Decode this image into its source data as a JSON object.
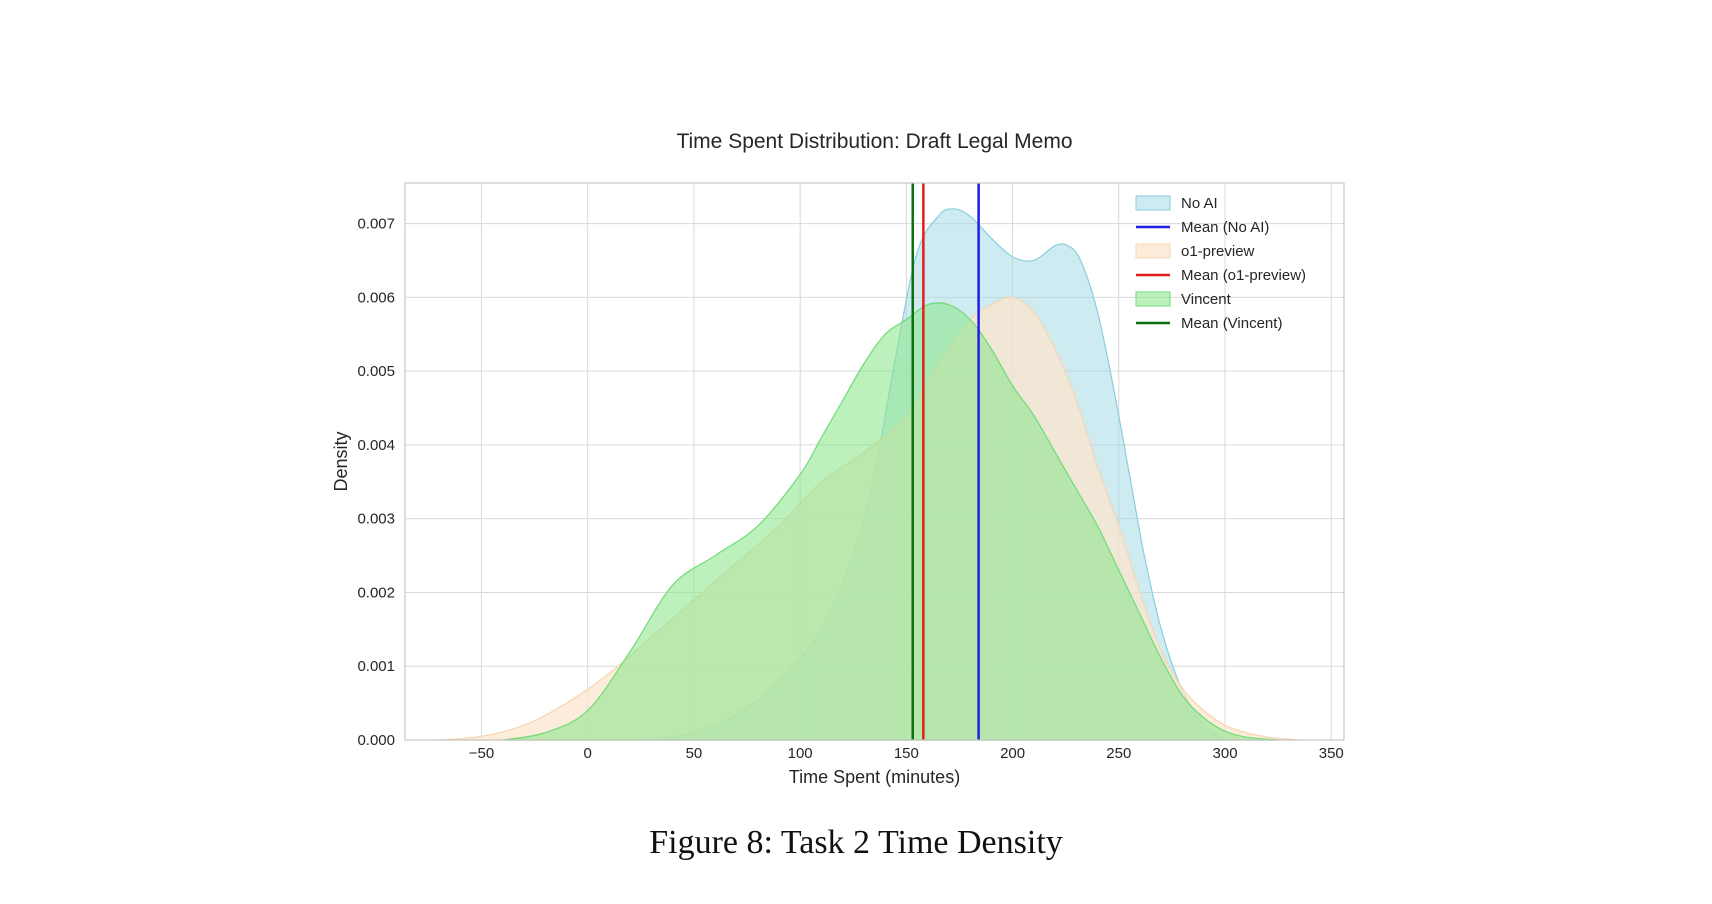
{
  "caption": "Figure 8: Task 2 Time Density",
  "colors": {
    "no_ai_fill": "#a6dbe6",
    "no_ai_edge": "#88cfdc",
    "o1_fill": "#fbe5cc",
    "o1_edge": "#f6d6b1",
    "vincent_fill": "#8fe68f",
    "vincent_edge": "#6fdc78",
    "mean_no_ai": "#1f1fe0",
    "mean_o1": "#e01f1f",
    "mean_vincent": "#0c6e0c",
    "grid": "#d9d9d9",
    "frame": "#c8c8c8"
  },
  "chart_data": {
    "type": "area",
    "title": "Time Spent Distribution: Draft Legal Memo",
    "xlabel": "Time Spent (minutes)",
    "ylabel": "Density",
    "xlim": [
      -86,
      356
    ],
    "ylim": [
      0,
      0.00755
    ],
    "xticks": [
      -50,
      0,
      50,
      100,
      150,
      200,
      250,
      300,
      350
    ],
    "xtick_labels": [
      "−50",
      "0",
      "50",
      "100",
      "150",
      "200",
      "250",
      "300",
      "350"
    ],
    "yticks": [
      0,
      0.001,
      0.002,
      0.003,
      0.004,
      0.005,
      0.006,
      0.007
    ],
    "ytick_labels": [
      "0.000",
      "0.001",
      "0.002",
      "0.003",
      "0.004",
      "0.005",
      "0.006",
      "0.007"
    ],
    "grid": true,
    "legend_position": "top-right",
    "series": [
      {
        "name": "No AI",
        "kind": "kde",
        "x": [
          30,
          50,
          70,
          90,
          110,
          125,
          135,
          145,
          155,
          165,
          172,
          180,
          190,
          200,
          210,
          220,
          226,
          232,
          240,
          248,
          255,
          262,
          270,
          278,
          285,
          292,
          300
        ],
        "y": [
          0,
          0.0001,
          0.00035,
          0.0008,
          0.0015,
          0.0025,
          0.0036,
          0.0052,
          0.0066,
          0.0071,
          0.0072,
          0.0071,
          0.0068,
          0.00655,
          0.0065,
          0.0067,
          0.0067,
          0.0065,
          0.0058,
          0.0047,
          0.0036,
          0.0025,
          0.0015,
          0.0008,
          0.0004,
          0.00015,
          0
        ]
      },
      {
        "name": "o1-preview",
        "kind": "kde",
        "x": [
          -70,
          -50,
          -30,
          -10,
          10,
          30,
          50,
          70,
          90,
          110,
          130,
          150,
          165,
          180,
          190,
          200,
          210,
          220,
          230,
          240,
          250,
          260,
          270,
          280,
          290,
          300,
          310,
          320,
          335
        ],
        "y": [
          0,
          5e-05,
          0.0002,
          0.0005,
          0.0009,
          0.0014,
          0.0019,
          0.0024,
          0.0029,
          0.0035,
          0.0039,
          0.0044,
          0.0051,
          0.0057,
          0.0059,
          0.006,
          0.0058,
          0.0053,
          0.0046,
          0.0037,
          0.0029,
          0.002,
          0.0012,
          0.0007,
          0.0004,
          0.0002,
          0.0001,
          4e-05,
          0
        ]
      },
      {
        "name": "Vincent",
        "kind": "kde",
        "x": [
          -40,
          -20,
          0,
          20,
          40,
          60,
          80,
          100,
          110,
          120,
          130,
          140,
          150,
          160,
          170,
          180,
          190,
          200,
          210,
          220,
          230,
          240,
          250,
          260,
          270,
          280,
          290,
          300,
          310,
          325
        ],
        "y": [
          0,
          0.0001,
          0.0004,
          0.0012,
          0.0021,
          0.0025,
          0.0029,
          0.0036,
          0.0041,
          0.0046,
          0.0051,
          0.0055,
          0.0057,
          0.0059,
          0.0059,
          0.0057,
          0.0053,
          0.0048,
          0.0044,
          0.0039,
          0.0034,
          0.0029,
          0.0023,
          0.0017,
          0.0011,
          0.0006,
          0.0003,
          0.00012,
          4e-05,
          0
        ]
      }
    ],
    "means": [
      {
        "name": "Mean (No AI)",
        "x": 184
      },
      {
        "name": "Mean (o1-preview)",
        "x": 158
      },
      {
        "name": "Mean (Vincent)",
        "x": 153
      }
    ],
    "legend": [
      "No AI",
      "Mean (No AI)",
      "o1-preview",
      "Mean (o1-preview)",
      "Vincent",
      "Mean (Vincent)"
    ]
  }
}
